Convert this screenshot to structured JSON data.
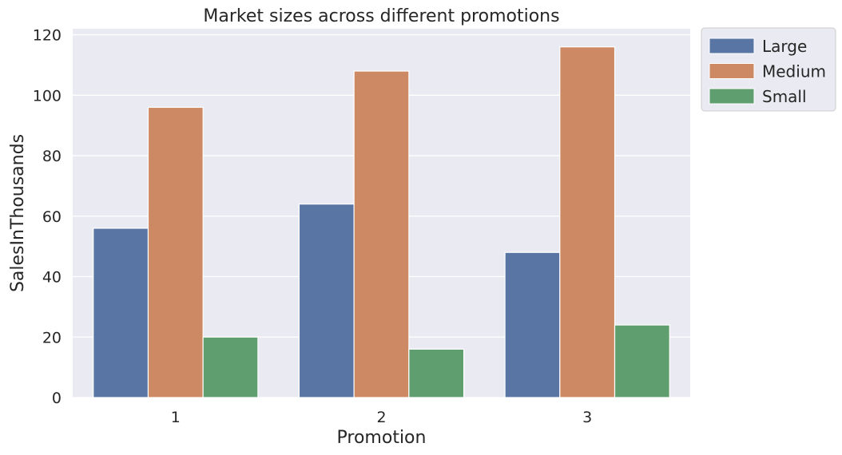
{
  "chart_data": {
    "type": "bar",
    "title": "Market sizes across different promotions",
    "xlabel": "Promotion",
    "ylabel": "SalesInThousands",
    "categories": [
      "1",
      "2",
      "3"
    ],
    "series": [
      {
        "name": "Large",
        "color": "#5875a4",
        "values": [
          56,
          64,
          48
        ]
      },
      {
        "name": "Medium",
        "color": "#cc8963",
        "values": [
          96,
          108,
          116
        ]
      },
      {
        "name": "Small",
        "color": "#5f9e6e",
        "values": [
          20,
          16,
          24
        ]
      }
    ],
    "ylim": [
      0,
      122
    ],
    "yticks": [
      0,
      20,
      40,
      60,
      80,
      100,
      120
    ],
    "grid": true,
    "legend_position": "outside-top-right",
    "plot_background": "#eaeaf2",
    "grid_color": "#ffffff"
  }
}
